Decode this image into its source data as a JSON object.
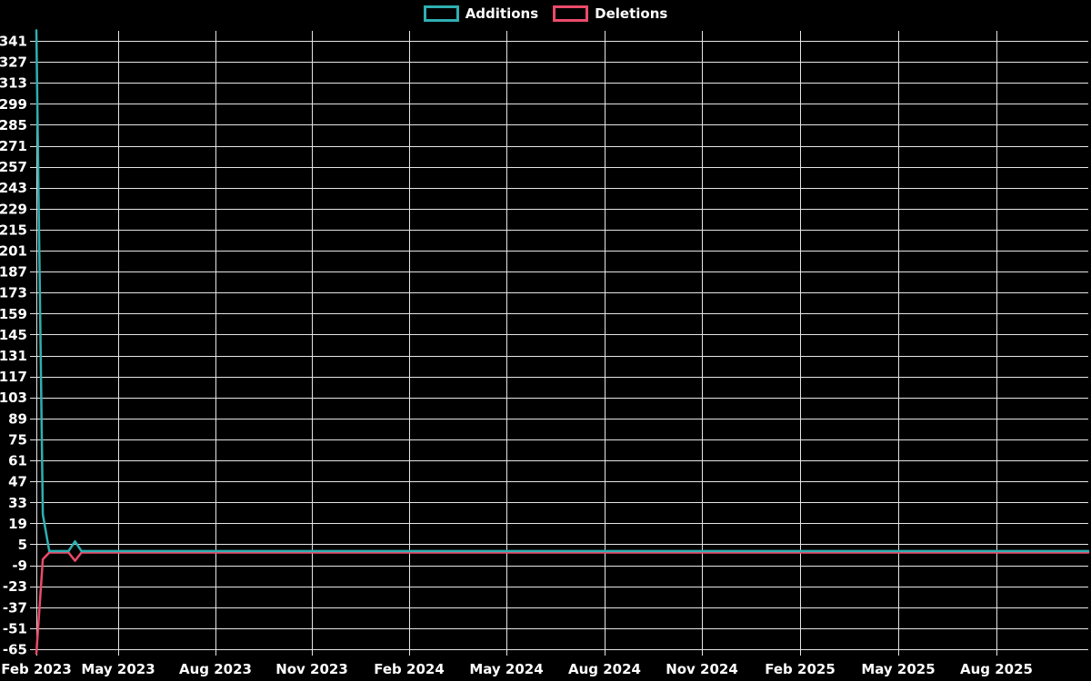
{
  "legend": {
    "items": [
      {
        "label": "Additions",
        "color": "#2fafb2"
      },
      {
        "label": "Deletions",
        "color": "#eb4b69"
      }
    ]
  },
  "chart_data": {
    "type": "line",
    "title": "",
    "background": "#000000",
    "grid": true,
    "grid_color": "#e6e6e6",
    "text_color": "#ffffff",
    "legend_position": "top-center",
    "x_ticks": [
      "Feb 2023",
      "May 2023",
      "Aug 2023",
      "Nov 2023",
      "Feb 2024",
      "May 2024",
      "Aug 2024",
      "Nov 2024",
      "Feb 2025",
      "May 2025",
      "Aug 2025"
    ],
    "x_tick_dates": [
      "2023-02-01",
      "2023-05-01",
      "2023-08-01",
      "2023-11-01",
      "2024-02-01",
      "2024-05-01",
      "2024-08-01",
      "2024-11-01",
      "2025-02-01",
      "2025-05-01",
      "2025-08-01"
    ],
    "y_ticks": [
      341,
      327,
      313,
      299,
      285,
      271,
      257,
      243,
      229,
      215,
      201,
      187,
      173,
      159,
      145,
      131,
      117,
      103,
      89,
      75,
      61,
      47,
      33,
      19,
      5,
      -9,
      -23,
      -37,
      -51,
      -65
    ],
    "ylim": [
      -68,
      349
    ],
    "series": [
      {
        "name": "Additions",
        "color": "#2fafb2",
        "points": [
          [
            "2023-02-01",
            348
          ],
          [
            "2023-02-08",
            25
          ],
          [
            "2023-02-15",
            0.5
          ],
          [
            "2023-03-08",
            0.5
          ],
          [
            "2023-03-15",
            7
          ],
          [
            "2023-03-22",
            0.5
          ],
          [
            "2025-10-26",
            0.5
          ]
        ]
      },
      {
        "name": "Deletions",
        "color": "#eb4b69",
        "points": [
          [
            "2023-02-01",
            -68
          ],
          [
            "2023-02-08",
            -5
          ],
          [
            "2023-02-15",
            -0.5
          ],
          [
            "2023-03-08",
            -0.5
          ],
          [
            "2023-03-15",
            -6
          ],
          [
            "2023-03-22",
            -0.5
          ],
          [
            "2025-10-26",
            -0.5
          ]
        ]
      }
    ]
  }
}
